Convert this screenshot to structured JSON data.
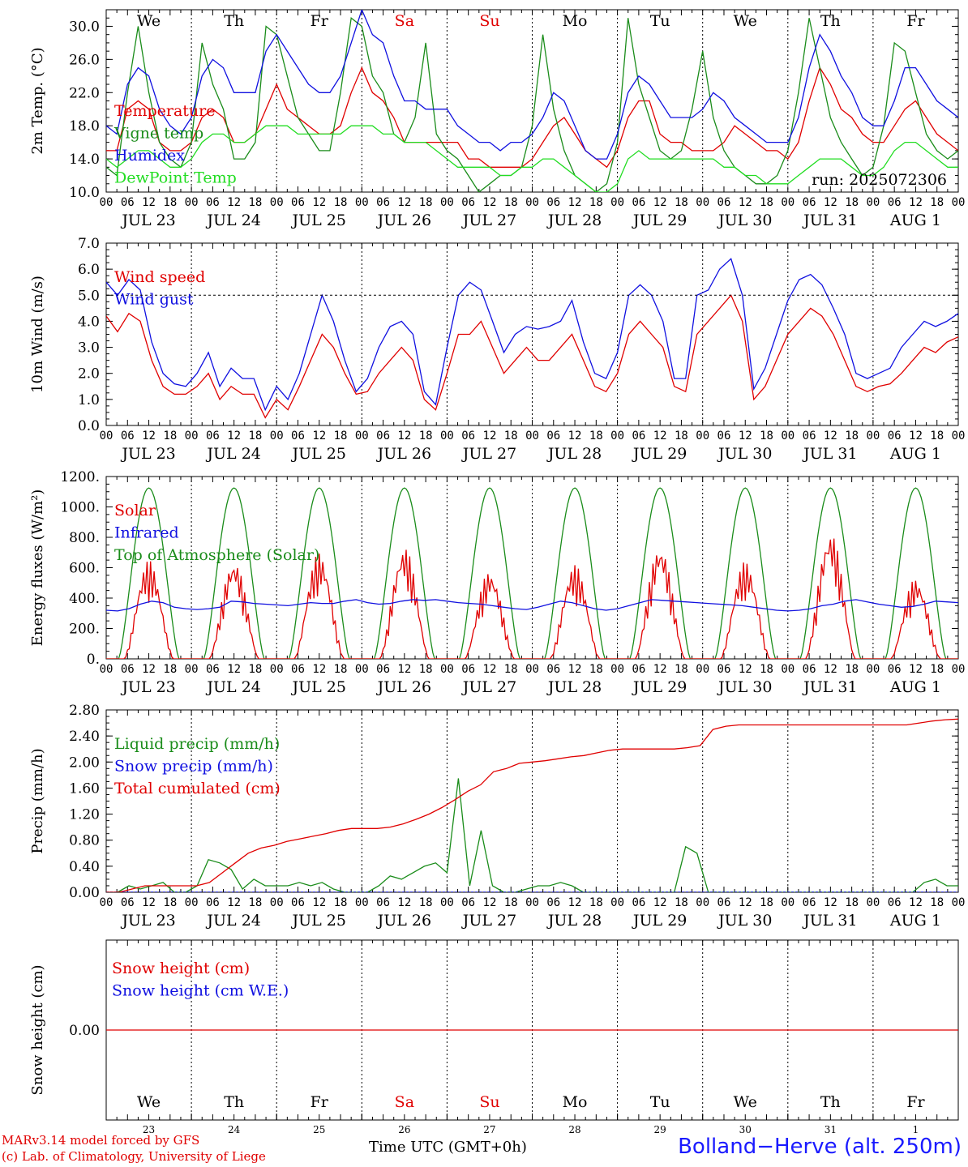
{
  "days": [
    {
      "abbr": "We",
      "date": "JUL 23",
      "num": "23",
      "weekend": false
    },
    {
      "abbr": "Th",
      "date": "JUL 24",
      "num": "24",
      "weekend": false
    },
    {
      "abbr": "Fr",
      "date": "JUL 25",
      "num": "25",
      "weekend": false
    },
    {
      "abbr": "Sa",
      "date": "JUL 26",
      "num": "26",
      "weekend": true
    },
    {
      "abbr": "Su",
      "date": "JUL 27",
      "num": "27",
      "weekend": true
    },
    {
      "abbr": "Mo",
      "date": "JUL 28",
      "num": "28",
      "weekend": false
    },
    {
      "abbr": "Tu",
      "date": "JUL 29",
      "num": "29",
      "weekend": false
    },
    {
      "abbr": "We",
      "date": "JUL 30",
      "num": "30",
      "weekend": false
    },
    {
      "abbr": "Th",
      "date": "JUL 31",
      "num": "31",
      "weekend": false
    },
    {
      "abbr": "Fr",
      "date": "AUG  1",
      "num": "1",
      "weekend": false
    }
  ],
  "hour_ticks": [
    "00",
    "06",
    "12",
    "18"
  ],
  "colors": {
    "red": "#e00000",
    "green": "#1a8c1a",
    "blue": "#1010e0",
    "light_green": "#22dd22",
    "grid": "#000000"
  },
  "footer": {
    "left1": "MARv3.14 model forced by GFS",
    "left2": "(c) Lab. of Climatology, University of Liege",
    "center": "Time UTC (GMT+0h)",
    "right": "Bolland−Herve (alt. 250m)"
  },
  "chart_data": [
    {
      "type": "line",
      "ylabel": "2m Temp. (°C)",
      "ylim": [
        10,
        32
      ],
      "yticks": [
        10,
        14,
        18,
        22,
        26,
        30
      ],
      "ytick_labels": [
        "10.0",
        "14.0",
        "18.0",
        "22.0",
        "26.0",
        "30.0"
      ],
      "annotation": "run: 2025072306",
      "show_day_abbr": true,
      "series": [
        {
          "name": "Temperature",
          "color": "#e00000",
          "values": [
            15,
            15,
            20,
            21,
            20,
            16,
            15,
            15,
            16,
            19,
            20,
            19,
            16,
            16,
            17,
            20,
            23,
            20,
            19,
            18,
            17,
            17,
            18,
            22,
            25,
            22,
            21,
            19,
            16,
            16,
            16,
            16,
            16,
            16,
            14,
            14,
            13,
            13,
            13,
            13,
            14,
            16,
            18,
            19,
            17,
            15,
            14,
            13,
            15,
            19,
            21,
            21,
            17,
            16,
            16,
            15,
            15,
            15,
            16,
            18,
            17,
            16,
            15,
            15,
            14,
            16,
            21,
            25,
            23,
            20,
            19,
            17,
            16,
            16,
            18,
            20,
            21,
            19,
            17,
            16,
            15
          ]
        },
        {
          "name": "Vigne temp",
          "color": "#1a8c1a",
          "values": [
            13,
            12,
            22,
            30,
            22,
            16,
            14,
            13,
            16,
            28,
            23,
            20,
            14,
            14,
            16,
            30,
            29,
            24,
            19,
            17,
            15,
            15,
            22,
            31,
            30,
            24,
            22,
            17,
            16,
            19,
            28,
            17,
            15,
            14,
            12,
            10,
            11,
            12,
            12,
            13,
            18,
            29,
            20,
            15,
            12,
            11,
            10,
            11,
            16,
            31,
            23,
            19,
            15,
            14,
            15,
            20,
            27,
            19,
            15,
            13,
            12,
            11,
            11,
            12,
            15,
            22,
            31,
            25,
            19,
            16,
            14,
            12,
            13,
            18,
            28,
            27,
            22,
            17,
            15,
            14,
            15
          ]
        },
        {
          "name": "Humidex",
          "color": "#1010e0",
          "values": [
            18,
            17,
            23,
            25,
            24,
            20,
            18,
            17,
            19,
            24,
            26,
            25,
            22,
            22,
            22,
            27,
            29,
            27,
            25,
            23,
            22,
            22,
            24,
            28,
            32,
            29,
            28,
            24,
            21,
            21,
            20,
            20,
            20,
            18,
            17,
            16,
            16,
            15,
            16,
            16,
            17,
            19,
            22,
            21,
            18,
            15,
            14,
            14,
            17,
            22,
            24,
            23,
            21,
            19,
            19,
            19,
            20,
            22,
            21,
            19,
            18,
            17,
            16,
            16,
            16,
            19,
            25,
            29,
            27,
            24,
            22,
            19,
            18,
            18,
            21,
            25,
            25,
            23,
            21,
            20,
            19
          ]
        },
        {
          "name": "DewPoint Temp",
          "color": "#22dd22",
          "values": [
            14,
            13,
            14,
            15,
            15,
            14,
            13,
            13,
            14,
            16,
            17,
            17,
            16,
            16,
            17,
            18,
            18,
            18,
            17,
            17,
            17,
            17,
            17,
            18,
            18,
            18,
            17,
            17,
            16,
            16,
            16,
            15,
            14,
            13,
            13,
            13,
            13,
            12,
            12,
            13,
            13,
            14,
            14,
            13,
            12,
            11,
            10,
            10,
            11,
            14,
            15,
            14,
            14,
            14,
            14,
            14,
            14,
            14,
            13,
            13,
            12,
            12,
            11,
            11,
            11,
            12,
            13,
            14,
            14,
            14,
            13,
            12,
            12,
            13,
            15,
            16,
            16,
            15,
            14,
            13,
            13
          ]
        }
      ]
    },
    {
      "type": "line",
      "ylabel": "10m Wind (m/s)",
      "ylim": [
        0,
        7
      ],
      "yticks": [
        0,
        1,
        2,
        3,
        4,
        5,
        6,
        7
      ],
      "ytick_labels": [
        "0.0",
        "1.0",
        "2.0",
        "3.0",
        "4.0",
        "5.0",
        "6.0",
        "7.0"
      ],
      "hline": 5,
      "show_day_abbr": false,
      "series": [
        {
          "name": "Wind speed",
          "color": "#e00000",
          "values": [
            4.2,
            3.6,
            4.3,
            4.0,
            2.5,
            1.5,
            1.2,
            1.2,
            1.5,
            2.0,
            1.0,
            1.5,
            1.2,
            1.2,
            0.3,
            1.0,
            0.6,
            1.5,
            2.5,
            3.5,
            3.0,
            2.0,
            1.2,
            1.3,
            2.0,
            2.5,
            3.0,
            2.5,
            1.0,
            0.6,
            2.0,
            3.5,
            3.5,
            4.0,
            3.0,
            2.0,
            2.5,
            3.0,
            2.5,
            2.5,
            3.0,
            3.5,
            2.5,
            1.5,
            1.3,
            2.0,
            3.5,
            4.0,
            3.5,
            3.0,
            1.5,
            1.3,
            3.5,
            4.0,
            4.5,
            5.0,
            4.0,
            1.0,
            1.5,
            2.5,
            3.5,
            4.0,
            4.5,
            4.2,
            3.5,
            2.5,
            1.5,
            1.3,
            1.5,
            1.6,
            2.0,
            2.5,
            3.0,
            2.8,
            3.2,
            3.4
          ]
        },
        {
          "name": "Wind gust",
          "color": "#1010e0",
          "values": [
            5.5,
            5.0,
            5.6,
            5.2,
            3.2,
            2.0,
            1.6,
            1.5,
            2.0,
            2.8,
            1.5,
            2.2,
            1.8,
            1.8,
            0.6,
            1.5,
            1.0,
            2.0,
            3.5,
            5.0,
            4.0,
            2.5,
            1.3,
            1.8,
            3.0,
            3.8,
            4.0,
            3.5,
            1.3,
            0.8,
            3.0,
            5.0,
            5.5,
            5.2,
            4.0,
            2.8,
            3.5,
            3.8,
            3.7,
            3.8,
            4.0,
            4.8,
            3.2,
            2.0,
            1.8,
            2.8,
            5.0,
            5.4,
            5.0,
            4.0,
            1.8,
            1.8,
            5.0,
            5.2,
            6.0,
            6.4,
            5.0,
            1.4,
            2.2,
            3.5,
            4.8,
            5.6,
            5.8,
            5.4,
            4.5,
            3.5,
            2.0,
            1.8,
            2.0,
            2.2,
            3.0,
            3.5,
            4.0,
            3.8,
            4.0,
            4.3
          ]
        }
      ]
    },
    {
      "type": "line",
      "ylabel": "Energy fluxes (W/m²)",
      "ylim": [
        0,
        1200
      ],
      "yticks": [
        0,
        200,
        400,
        600,
        800,
        1000,
        1200
      ],
      "ytick_labels": [
        "0.",
        "200.",
        "400.",
        "600.",
        "800.",
        "1000.",
        "1200."
      ],
      "show_day_abbr": false,
      "toa_peak": 1125,
      "infrared_values": [
        320,
        315,
        330,
        360,
        380,
        370,
        340,
        330,
        325,
        330,
        340,
        380,
        375,
        365,
        360,
        355,
        350,
        360,
        370,
        365,
        365,
        380,
        390,
        370,
        360,
        365,
        380,
        390,
        385,
        390,
        380,
        370,
        365,
        360,
        350,
        340,
        330,
        325,
        340,
        360,
        380,
        370,
        350,
        330,
        320,
        330,
        350,
        370,
        390,
        385,
        380,
        375,
        370,
        365,
        360,
        355,
        350,
        340,
        330,
        320,
        315,
        320,
        330,
        350,
        360,
        380,
        390,
        375,
        360,
        350,
        340,
        345,
        360,
        380,
        375,
        370
      ],
      "solar_peaks": [
        650,
        650,
        700,
        740,
        580,
        620,
        750,
        640,
        840,
        530
      ],
      "series": [
        {
          "name": "Solar",
          "color": "#e00000"
        },
        {
          "name": "Infrared",
          "color": "#1010e0"
        },
        {
          "name": "Top of Atmosphere (Solar)",
          "color": "#1a8c1a"
        }
      ]
    },
    {
      "type": "line",
      "ylabel": "Precip (mm/h)",
      "ylim": [
        0,
        2.8
      ],
      "yticks": [
        0,
        0.4,
        0.8,
        1.2,
        1.6,
        2.0,
        2.4,
        2.8
      ],
      "ytick_labels": [
        "0.00",
        "0.40",
        "0.80",
        "1.20",
        "1.60",
        "2.00",
        "2.40",
        "2.80"
      ],
      "show_day_abbr": false,
      "series": [
        {
          "name": "Liquid precip (mm/h)",
          "color": "#1a8c1a",
          "values": [
            0,
            0,
            0.1,
            0.05,
            0.1,
            0.15,
            0,
            0,
            0.1,
            0.5,
            0.45,
            0.35,
            0.05,
            0.2,
            0.1,
            0.1,
            0.1,
            0.15,
            0.1,
            0.15,
            0.05,
            0,
            0,
            0,
            0.1,
            0.25,
            0.2,
            0.3,
            0.4,
            0.45,
            0.3,
            1.75,
            0.1,
            0.95,
            0.1,
            0,
            0,
            0.05,
            0.1,
            0.1,
            0.15,
            0.1,
            0,
            0,
            0,
            0,
            0,
            0,
            0,
            0,
            0,
            0.7,
            0.6,
            0,
            0,
            0,
            0,
            0,
            0,
            0,
            0,
            0,
            0,
            0,
            0,
            0,
            0,
            0,
            0,
            0,
            0,
            0,
            0.15,
            0.2,
            0.1,
            0.1
          ]
        },
        {
          "name": "Snow precip (mm/h)",
          "color": "#1010e0",
          "values": [
            0,
            0
          ]
        },
        {
          "name": "Total cumulated (cm)",
          "color": "#e00000",
          "values": [
            0,
            0,
            0.05,
            0.1,
            0.1,
            0.1,
            0.1,
            0.1,
            0.15,
            0.3,
            0.45,
            0.6,
            0.68,
            0.72,
            0.78,
            0.82,
            0.86,
            0.9,
            0.95,
            0.98,
            0.98,
            0.98,
            1.0,
            1.05,
            1.12,
            1.2,
            1.3,
            1.42,
            1.55,
            1.65,
            1.85,
            1.9,
            1.98,
            2.0,
            2.02,
            2.05,
            2.08,
            2.1,
            2.14,
            2.18,
            2.2,
            2.2,
            2.2,
            2.2,
            2.2,
            2.22,
            2.25,
            2.5,
            2.55,
            2.57,
            2.57,
            2.57,
            2.57,
            2.57,
            2.57,
            2.57,
            2.57,
            2.57,
            2.57,
            2.57,
            2.57,
            2.57,
            2.57,
            2.6,
            2.63,
            2.65,
            2.66
          ]
        }
      ]
    },
    {
      "type": "line",
      "ylabel": "Snow height (cm)",
      "ylim": [
        -1,
        1
      ],
      "yticks": [
        0
      ],
      "ytick_labels": [
        "0.00"
      ],
      "show_day_abbr": false,
      "series": [
        {
          "name": "Snow height (cm)",
          "color": "#e00000",
          "values": [
            0,
            0
          ]
        },
        {
          "name": "Snow height (cm W.E.)",
          "color": "#1010e0",
          "values": [
            0,
            0
          ]
        }
      ]
    }
  ]
}
